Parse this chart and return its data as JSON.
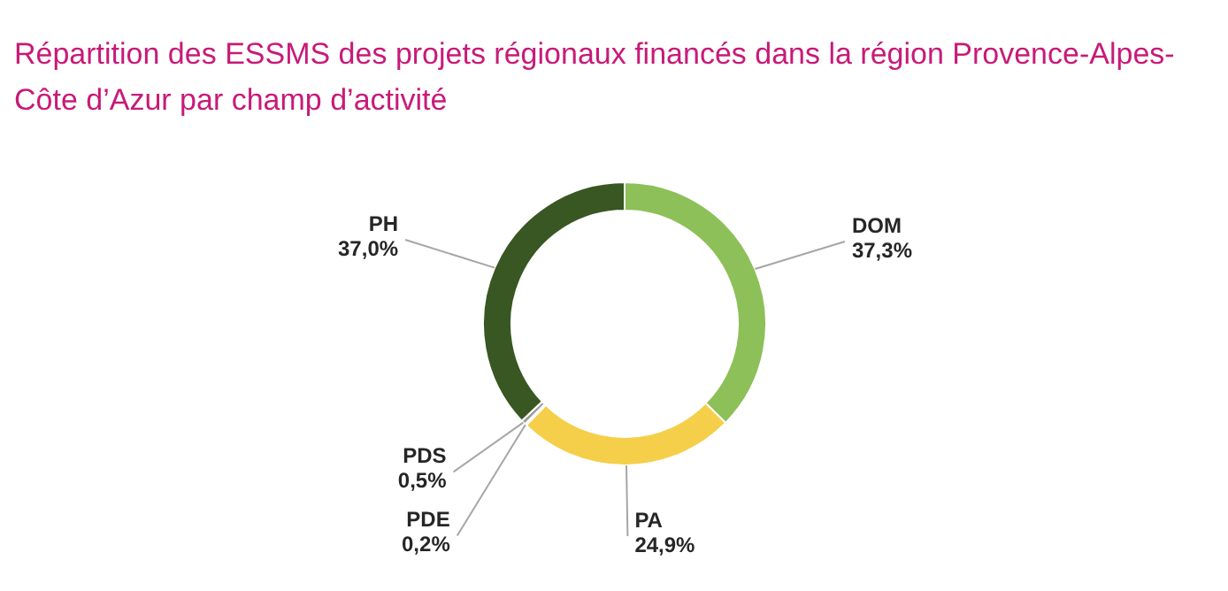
{
  "chart_data": {
    "type": "donut",
    "title": "Répartition des ESSMS des projets régionaux financés dans la région Provence-Alpes-Côte d’Azur par champ d’activité",
    "categories": [
      "DOM",
      "PA",
      "PDE",
      "PDS",
      "PH"
    ],
    "values": [
      37.3,
      24.9,
      0.2,
      0.5,
      37.0
    ],
    "value_labels": [
      "37,3%",
      "24,9%",
      "0,2%",
      "0,5%",
      "37,0%"
    ],
    "colors": [
      "#8dc058",
      "#f5cf4a",
      "#c9c9c9",
      "#9a9a9a",
      "#385723"
    ],
    "legend": false
  }
}
